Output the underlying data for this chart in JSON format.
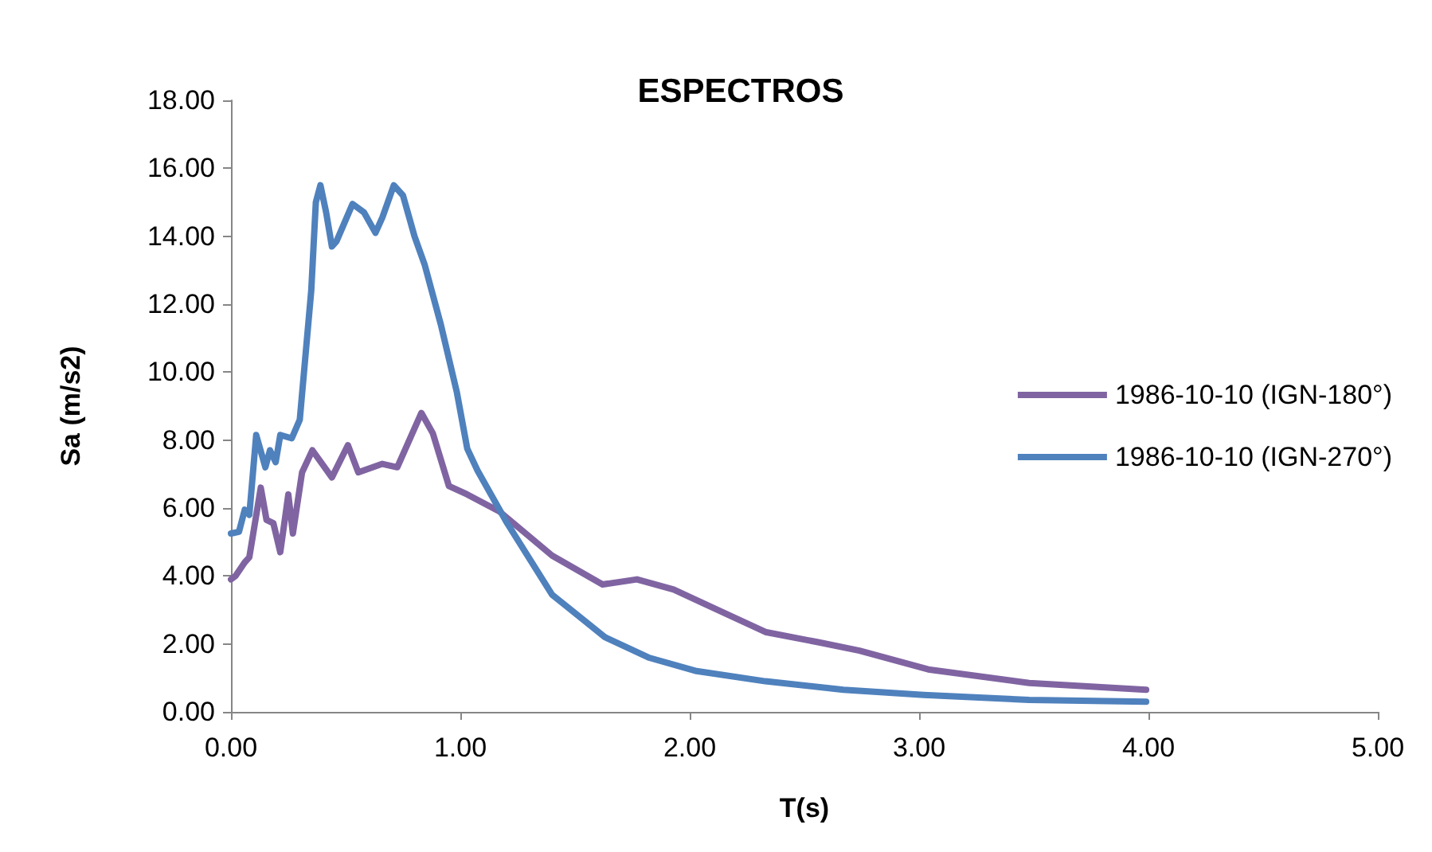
{
  "chart_data": {
    "type": "line",
    "title": "ESPECTROS",
    "xlabel": "T(s)",
    "ylabel": "Sa (m/s2)",
    "legend": "right",
    "grid": false,
    "marker": "none",
    "line_style": "solid",
    "xlim": [
      0,
      5
    ],
    "xticks": [
      {
        "value": 0,
        "label": "0.00"
      },
      {
        "value": 1,
        "label": "1.00"
      },
      {
        "value": 2,
        "label": "2.00"
      },
      {
        "value": 3,
        "label": "3.00"
      },
      {
        "value": 4,
        "label": "4.00"
      },
      {
        "value": 5,
        "label": "5.00"
      }
    ],
    "ylim": [
      0,
      18
    ],
    "yticks": [
      {
        "value": 0,
        "label": "0.00"
      },
      {
        "value": 2,
        "label": "2.00"
      },
      {
        "value": 4,
        "label": "4.00"
      },
      {
        "value": 6,
        "label": "6.00"
      },
      {
        "value": 8,
        "label": "8.00"
      },
      {
        "value": 10,
        "label": "10.00"
      },
      {
        "value": 12,
        "label": "12.00"
      },
      {
        "value": 14,
        "label": "14.00"
      },
      {
        "value": 16,
        "label": "16.00"
      },
      {
        "value": 18,
        "label": "18.00"
      }
    ],
    "series": [
      {
        "name": "1986-10-10 (IGN-180°)",
        "color": "#8064a2",
        "x": [
          0,
          0.02,
          0.06,
          0.08,
          0.13,
          0.155,
          0.185,
          0.215,
          0.25,
          0.27,
          0.31,
          0.355,
          0.44,
          0.51,
          0.555,
          0.66,
          0.725,
          0.83,
          0.88,
          0.95,
          1.03,
          1.17,
          1.4,
          1.62,
          1.77,
          1.93,
          2.33,
          2.56,
          2.74,
          3.04,
          3.48,
          3.99
        ],
        "values": [
          3.9,
          4.0,
          4.4,
          4.55,
          6.6,
          5.65,
          5.55,
          4.7,
          6.4,
          5.25,
          7.05,
          7.7,
          6.9,
          7.85,
          7.05,
          7.3,
          7.2,
          8.8,
          8.2,
          6.65,
          6.4,
          5.9,
          4.6,
          3.75,
          3.9,
          3.6,
          2.35,
          2.05,
          1.8,
          1.25,
          0.85,
          0.65
        ]
      },
      {
        "name": "1986-10-10 (IGN-270°)",
        "color": "#4f81bd",
        "x": [
          0,
          0.035,
          0.06,
          0.08,
          0.11,
          0.15,
          0.17,
          0.195,
          0.215,
          0.265,
          0.3,
          0.35,
          0.37,
          0.39,
          0.415,
          0.44,
          0.46,
          0.53,
          0.58,
          0.63,
          0.66,
          0.71,
          0.75,
          0.8,
          0.845,
          0.915,
          0.985,
          1.03,
          1.075,
          1.2,
          1.4,
          1.63,
          1.82,
          2.03,
          2.33,
          2.67,
          3.02,
          3.48,
          3.99
        ],
        "values": [
          5.25,
          5.3,
          5.95,
          5.8,
          8.15,
          7.2,
          7.7,
          7.35,
          8.15,
          8.05,
          8.6,
          12.4,
          15,
          15.5,
          14.7,
          13.7,
          13.85,
          14.95,
          14.7,
          14.1,
          14.55,
          15.5,
          15.2,
          14,
          13.15,
          11.4,
          9.4,
          7.75,
          7.1,
          5.6,
          3.45,
          2.2,
          1.6,
          1.2,
          0.9,
          0.65,
          0.5,
          0.35,
          0.3
        ]
      }
    ]
  }
}
